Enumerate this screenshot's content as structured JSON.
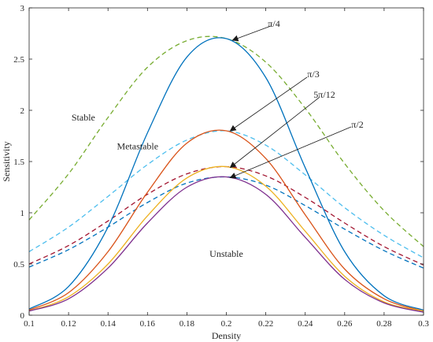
{
  "chart_data": {
    "type": "line",
    "xlabel": "Density",
    "ylabel": "Sensitivity",
    "xlim": [
      0.1,
      0.3
    ],
    "ylim": [
      0,
      3
    ],
    "xticks": [
      "0.1",
      "0.12",
      "0.14",
      "0.16",
      "0.18",
      "0.2",
      "0.22",
      "0.24",
      "0.26",
      "0.28",
      "0.3"
    ],
    "yticks": [
      "0",
      "0.5",
      "1",
      "1.5",
      "2",
      "2.5",
      "3"
    ],
    "grid": false,
    "x": [
      0.1,
      0.12,
      0.14,
      0.16,
      0.18,
      0.2,
      0.22,
      0.24,
      0.26,
      0.28,
      0.3
    ],
    "series": [
      {
        "style": "dashed",
        "color": "#77AC30",
        "values": [
          0.93,
          1.38,
          1.93,
          2.42,
          2.68,
          2.7,
          2.47,
          2.02,
          1.48,
          1.02,
          0.67
        ]
      },
      {
        "style": "dashed",
        "color": "#4DBEEE",
        "values": [
          0.62,
          0.86,
          1.16,
          1.47,
          1.71,
          1.8,
          1.66,
          1.37,
          1.05,
          0.78,
          0.56
        ]
      },
      {
        "style": "dashed",
        "color": "#A2142F",
        "values": [
          0.5,
          0.68,
          0.92,
          1.18,
          1.38,
          1.45,
          1.36,
          1.15,
          0.9,
          0.67,
          0.49
        ]
      },
      {
        "style": "dashed",
        "color": "#0072BD",
        "values": [
          0.47,
          0.64,
          0.86,
          1.1,
          1.29,
          1.35,
          1.27,
          1.07,
          0.84,
          0.63,
          0.46
        ]
      },
      {
        "style": "solid",
        "color": "#0072BD",
        "values": [
          0.06,
          0.28,
          0.86,
          1.78,
          2.52,
          2.7,
          2.32,
          1.44,
          0.62,
          0.19,
          0.05
        ]
      },
      {
        "style": "solid",
        "color": "#D95319",
        "values": [
          0.05,
          0.22,
          0.62,
          1.2,
          1.68,
          1.8,
          1.53,
          0.98,
          0.45,
          0.16,
          0.04
        ]
      },
      {
        "style": "solid",
        "color": "#EDB120",
        "values": [
          0.04,
          0.18,
          0.5,
          0.97,
          1.34,
          1.45,
          1.26,
          0.82,
          0.38,
          0.13,
          0.04
        ]
      },
      {
        "style": "solid",
        "color": "#7E2F8E",
        "values": [
          0.04,
          0.16,
          0.46,
          0.9,
          1.25,
          1.35,
          1.18,
          0.76,
          0.35,
          0.12,
          0.03
        ]
      }
    ],
    "annotations": [
      {
        "text": "π/4",
        "x": 0.2,
        "y": 2.7
      },
      {
        "text": "π/3",
        "x": 0.2,
        "y": 1.8
      },
      {
        "text": "5π/12",
        "x": 0.2,
        "y": 1.45
      },
      {
        "text": "π/2",
        "x": 0.2,
        "y": 1.35
      }
    ],
    "region_labels": [
      {
        "text": "Stable",
        "x": 0.1275,
        "y": 1.9
      },
      {
        "text": "Metastable",
        "x": 0.155,
        "y": 1.62
      },
      {
        "text": "Unstable",
        "x": 0.2,
        "y": 0.57
      }
    ]
  }
}
